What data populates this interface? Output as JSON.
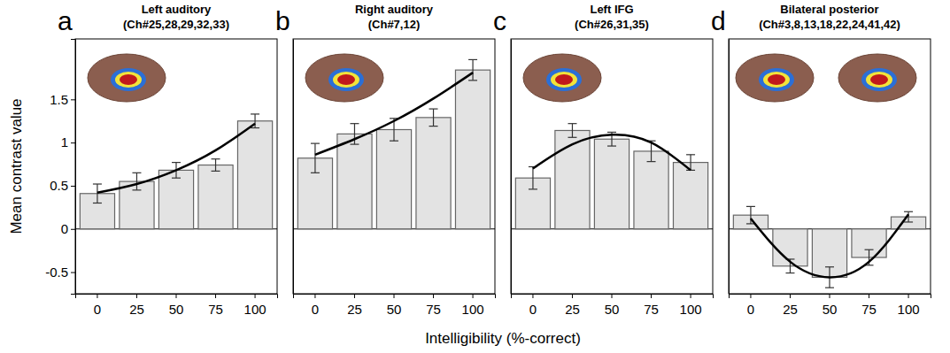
{
  "x_label": "Intelligibility (%-correct)",
  "chart_data": [
    {
      "type": "bar",
      "panel": "a",
      "title": "Left auditory",
      "subtitle": "(Ch#25,28,29,32,33)",
      "categories": [
        "0",
        "25",
        "50",
        "75",
        "100"
      ],
      "series": [
        {
          "type": "bar",
          "color": "#e3e3e3",
          "values": [
            0.41,
            0.55,
            0.68,
            0.74,
            1.25
          ],
          "errors": [
            0.11,
            0.1,
            0.09,
            0.07,
            0.08
          ]
        },
        {
          "type": "line",
          "color": "#000000",
          "values": [
            0.42,
            0.52,
            0.68,
            0.91,
            1.22
          ]
        }
      ],
      "ylim": [
        -0.75,
        2.2
      ],
      "yticks": [
        -0.5,
        0,
        0.5,
        1,
        1.5
      ],
      "y_label": "Mean contrast value"
    },
    {
      "type": "bar",
      "panel": "b",
      "title": "Right auditory",
      "subtitle": "(Ch#7,12)",
      "categories": [
        "0",
        "25",
        "50",
        "75",
        "100"
      ],
      "series": [
        {
          "type": "bar",
          "color": "#e3e3e3",
          "values": [
            0.82,
            1.1,
            1.15,
            1.29,
            1.84
          ],
          "errors": [
            0.17,
            0.12,
            0.13,
            0.1,
            0.12
          ]
        },
        {
          "type": "line",
          "color": "#000000",
          "values": [
            0.86,
            1.04,
            1.25,
            1.51,
            1.81
          ]
        }
      ],
      "ylim": [
        -0.75,
        2.2
      ],
      "yticks": [
        -0.5,
        0,
        0.5,
        1,
        1.5
      ],
      "tick_labels": "x"
    },
    {
      "type": "bar",
      "panel": "c",
      "title": "Left IFG",
      "subtitle": "(Ch#26,31,35)",
      "categories": [
        "0",
        "25",
        "50",
        "75",
        "100"
      ],
      "series": [
        {
          "type": "bar",
          "color": "#e3e3e3",
          "values": [
            0.59,
            1.14,
            1.04,
            0.9,
            0.77
          ],
          "errors": [
            0.13,
            0.08,
            0.08,
            0.12,
            0.09
          ]
        },
        {
          "type": "line",
          "color": "#000000",
          "values": [
            0.7,
            0.98,
            1.09,
            1.0,
            0.68
          ]
        }
      ],
      "ylim": [
        -0.75,
        2.2
      ],
      "yticks": [
        -0.5,
        0,
        0.5,
        1,
        1.5
      ],
      "tick_labels": "x"
    },
    {
      "type": "bar",
      "panel": "d",
      "title": "Bilateral posterior",
      "subtitle": "(Ch#3,8,13,18,22,24,41,42)",
      "categories": [
        "0",
        "25",
        "50",
        "75",
        "100"
      ],
      "series": [
        {
          "type": "bar",
          "color": "#e3e3e3",
          "values": [
            0.16,
            -0.43,
            -0.56,
            -0.33,
            0.14
          ],
          "errors": [
            0.1,
            0.08,
            0.12,
            0.09,
            0.06
          ]
        },
        {
          "type": "line",
          "color": "#000000",
          "values": [
            0.12,
            -0.38,
            -0.56,
            -0.38,
            0.17
          ]
        }
      ],
      "ylim": [
        -0.75,
        2.2
      ],
      "yticks": [
        -0.5,
        0,
        0.5,
        1,
        1.5
      ],
      "tick_labels": "x"
    }
  ]
}
